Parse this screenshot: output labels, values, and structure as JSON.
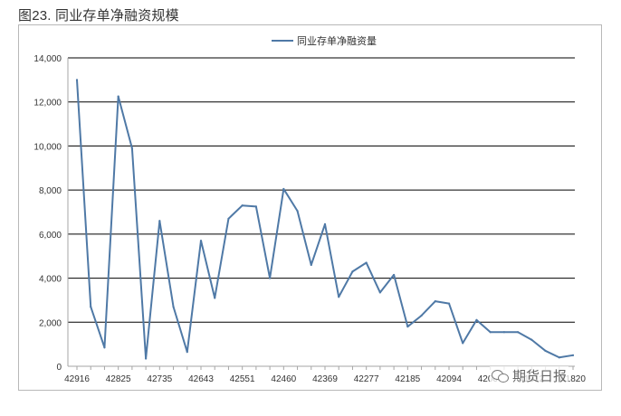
{
  "figure": {
    "caption": "图23. 同业存单净融资规模"
  },
  "watermark": {
    "text": "期货日报",
    "icon": "wechat-icon"
  },
  "chart_data": {
    "type": "line",
    "title": "",
    "xlabel": "",
    "ylabel": "",
    "legend_position": "top-center",
    "grid": true,
    "color": "#4f79a6",
    "ylim": [
      0,
      14000
    ],
    "yticks": [
      0,
      2000,
      4000,
      6000,
      8000,
      10000,
      12000,
      14000
    ],
    "ytick_labels": [
      "0",
      "2,000",
      "4,000",
      "6,000",
      "8,000",
      "10,000",
      "12,000",
      "14,000"
    ],
    "xtick_labels": [
      "42916",
      "42825",
      "42735",
      "42643",
      "42551",
      "42460",
      "42369",
      "42277",
      "42185",
      "42094",
      "42004",
      "41912",
      "41820"
    ],
    "series": [
      {
        "name": "同业存单净融资量",
        "values": [
          13000,
          2700,
          850,
          12250,
          9900,
          350,
          6600,
          2700,
          650,
          5700,
          3100,
          6700,
          7300,
          7250,
          4000,
          8050,
          7050,
          4600,
          6450,
          3150,
          4300,
          4700,
          3350,
          4150,
          1800,
          2300,
          2950,
          2850,
          1050,
          2100,
          1550,
          1550,
          1550,
          1200,
          700,
          400,
          500
        ]
      }
    ]
  }
}
